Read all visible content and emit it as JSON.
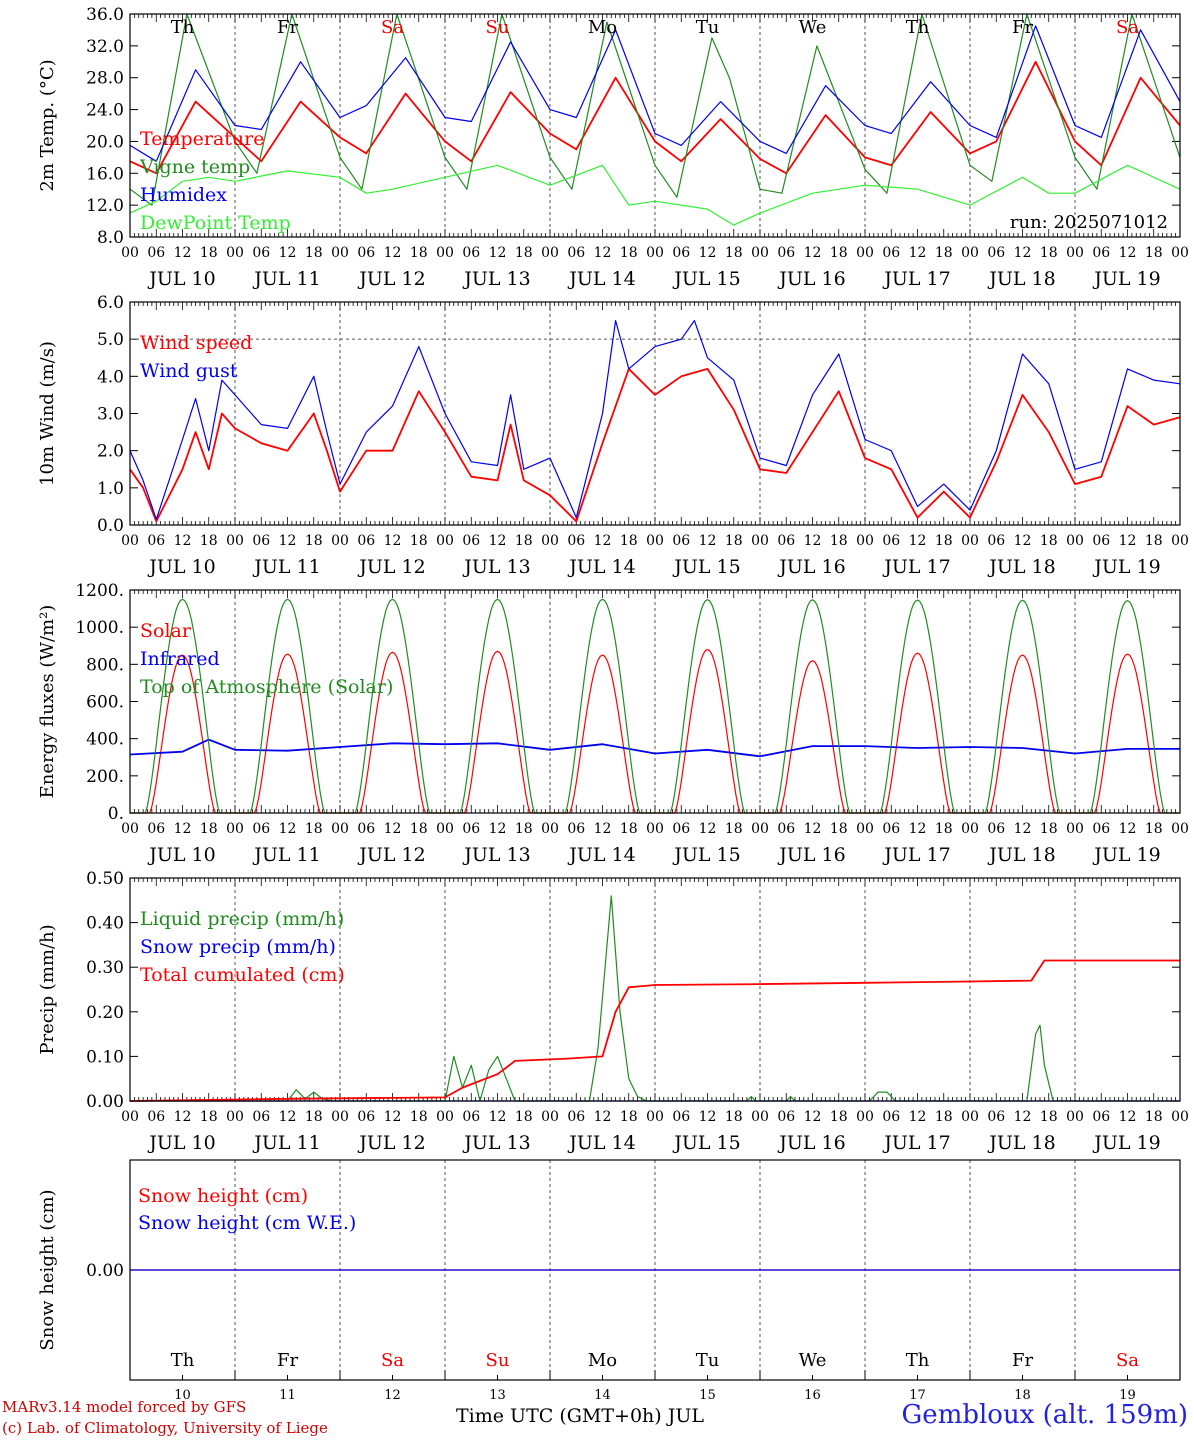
{
  "footer": {
    "credit_line1": "MARv3.14 model forced by GFS",
    "credit_line2": "(c) Lab. of Climatology, University of Liege",
    "x_title": "Time UTC (GMT+0h) JUL",
    "station": "Gembloux (alt. 159m)"
  },
  "colors": {
    "red": "#ff0000",
    "dark_green": "#228b22",
    "blue": "#0000ee",
    "light_green": "#33ee33",
    "weekend": "#ee0000",
    "weekday": "#000000"
  },
  "days": [
    "10",
    "11",
    "12",
    "13",
    "14",
    "15",
    "16",
    "17",
    "18",
    "19"
  ],
  "day_labels": [
    "JUL 10",
    "JUL 11",
    "JUL 12",
    "JUL 13",
    "JUL 14",
    "JUL 15",
    "JUL 16",
    "JUL 17",
    "JUL 18",
    "JUL 19"
  ],
  "weekdays": [
    {
      "label": "Th",
      "weekend": false
    },
    {
      "label": "Fr",
      "weekend": false
    },
    {
      "label": "Sa",
      "weekend": true
    },
    {
      "label": "Su",
      "weekend": true
    },
    {
      "label": "Mo",
      "weekend": false
    },
    {
      "label": "Tu",
      "weekend": false
    },
    {
      "label": "We",
      "weekend": false
    },
    {
      "label": "Th",
      "weekend": false
    },
    {
      "label": "Fr",
      "weekend": false
    },
    {
      "label": "Sa",
      "weekend": true
    }
  ],
  "hour_ticks": [
    "00",
    "06",
    "12",
    "18"
  ],
  "chart_data": [
    {
      "type": "line",
      "id": "temp",
      "ylabel": "2m Temp. (°C)",
      "ylim": [
        8,
        36
      ],
      "yticks": [
        "8.0",
        "12.0",
        "16.0",
        "20.0",
        "24.0",
        "28.0",
        "32.0",
        "36.0"
      ],
      "annotation": "run: 2025071012",
      "x_unit": "hours since Jul 10 00 UTC",
      "series": [
        {
          "name": "Temperature",
          "color": "#ff0000",
          "x": [
            0,
            6,
            15,
            24,
            30,
            39,
            48,
            54,
            63,
            72,
            78,
            87,
            96,
            102,
            111,
            120,
            126,
            135,
            144,
            150,
            159,
            168,
            174,
            183,
            192,
            198,
            207,
            216,
            222,
            231,
            240
          ],
          "y": [
            17.5,
            16.0,
            25.0,
            20.5,
            17.5,
            25.0,
            20.5,
            18.5,
            26.0,
            20.0,
            17.5,
            26.2,
            21.0,
            19.0,
            28.0,
            20.0,
            17.5,
            22.8,
            17.8,
            16.0,
            23.3,
            18.0,
            17.0,
            23.7,
            18.5,
            20.0,
            30.0,
            20.0,
            17.0,
            28.0,
            22.0
          ]
        },
        {
          "name": "Vigne temp",
          "color": "#228b22",
          "x": [
            0,
            5,
            13,
            24,
            29,
            37,
            48,
            53,
            61,
            72,
            77,
            85,
            96,
            101,
            109,
            120,
            125,
            133,
            137,
            144,
            149,
            157,
            168,
            173,
            181,
            192,
            197,
            205,
            216,
            221,
            229,
            240
          ],
          "y": [
            14.0,
            12.0,
            36.0,
            20.0,
            16.0,
            36.0,
            18.0,
            14.0,
            36.0,
            18.0,
            14.0,
            36.0,
            18.0,
            14.0,
            35.0,
            17.0,
            13.0,
            33.0,
            28.0,
            14.0,
            13.5,
            32.0,
            16.5,
            13.5,
            36.0,
            17.0,
            15.0,
            36.0,
            18.0,
            14.0,
            36.0,
            18.0
          ]
        },
        {
          "name": "Humidex",
          "color": "#0000ee",
          "x": [
            0,
            6,
            15,
            24,
            30,
            39,
            48,
            54,
            63,
            72,
            78,
            87,
            96,
            102,
            111,
            120,
            126,
            135,
            144,
            150,
            159,
            168,
            174,
            183,
            192,
            198,
            207,
            216,
            222,
            231,
            240
          ],
          "y": [
            19.5,
            17.5,
            29.0,
            22.0,
            21.5,
            30.0,
            23.0,
            24.5,
            30.5,
            23.0,
            22.5,
            32.5,
            24.0,
            23.0,
            34.0,
            21.0,
            19.5,
            25.0,
            20.0,
            18.5,
            27.0,
            22.0,
            21.0,
            27.5,
            22.0,
            20.5,
            34.5,
            22.0,
            20.5,
            34.0,
            25.0
          ]
        },
        {
          "name": "DewPoint Temp",
          "color": "#33ee33",
          "x": [
            0,
            6,
            12,
            18,
            24,
            36,
            48,
            54,
            60,
            72,
            84,
            96,
            108,
            114,
            120,
            132,
            138,
            144,
            156,
            168,
            180,
            192,
            204,
            210,
            216,
            228,
            240
          ],
          "y": [
            11.0,
            12.5,
            15.0,
            15.5,
            15.0,
            16.3,
            15.5,
            13.5,
            14.0,
            15.5,
            17.0,
            14.5,
            17.0,
            12.0,
            12.5,
            11.5,
            9.5,
            11.0,
            13.5,
            14.5,
            14.0,
            12.0,
            15.5,
            13.5,
            13.5,
            17.0,
            14.0
          ]
        }
      ]
    },
    {
      "type": "line",
      "id": "wind",
      "ylabel": "10m Wind (m/s)",
      "ylim": [
        0,
        6
      ],
      "yticks": [
        "0.0",
        "1.0",
        "2.0",
        "3.0",
        "4.0",
        "5.0",
        "6.0"
      ],
      "dashed_level": 5.0,
      "x_unit": "hours since Jul 10 00 UTC",
      "series": [
        {
          "name": "Wind speed",
          "color": "#ff0000",
          "x": [
            0,
            3,
            6,
            12,
            15,
            18,
            21,
            24,
            30,
            36,
            42,
            45,
            48,
            54,
            60,
            66,
            72,
            78,
            84,
            87,
            90,
            96,
            102,
            108,
            114,
            120,
            126,
            132,
            138,
            144,
            150,
            156,
            162,
            168,
            174,
            180,
            186,
            192,
            198,
            204,
            210,
            216,
            222,
            228,
            234,
            240
          ],
          "y": [
            1.5,
            1.0,
            0.1,
            1.5,
            2.5,
            1.5,
            3.0,
            2.6,
            2.2,
            2.0,
            3.0,
            2.0,
            0.9,
            2.0,
            2.0,
            3.6,
            2.5,
            1.3,
            1.2,
            2.7,
            1.2,
            0.8,
            0.1,
            2.2,
            4.2,
            3.5,
            4.0,
            4.2,
            3.1,
            1.5,
            1.4,
            2.5,
            3.6,
            1.8,
            1.5,
            0.2,
            0.9,
            0.2,
            1.7,
            3.5,
            2.5,
            1.1,
            1.3,
            3.2,
            2.7,
            2.9
          ]
        },
        {
          "name": "Wind gust",
          "color": "#0000ee",
          "x": [
            0,
            3,
            6,
            12,
            15,
            18,
            21,
            24,
            30,
            36,
            42,
            45,
            48,
            54,
            60,
            66,
            72,
            78,
            84,
            87,
            90,
            96,
            102,
            108,
            111,
            114,
            120,
            126,
            129,
            132,
            138,
            144,
            150,
            156,
            162,
            168,
            174,
            180,
            186,
            192,
            198,
            204,
            210,
            216,
            222,
            228,
            234,
            240
          ],
          "y": [
            2.0,
            1.2,
            0.15,
            2.3,
            3.4,
            2.0,
            3.9,
            3.5,
            2.7,
            2.6,
            4.0,
            2.5,
            1.1,
            2.5,
            3.2,
            4.8,
            3.0,
            1.7,
            1.6,
            3.5,
            1.5,
            1.8,
            0.2,
            3.0,
            5.5,
            4.2,
            4.8,
            5.0,
            5.5,
            4.5,
            3.9,
            1.8,
            1.6,
            3.5,
            4.6,
            2.3,
            2.0,
            0.5,
            1.1,
            0.4,
            2.0,
            4.6,
            3.8,
            1.5,
            1.7,
            4.2,
            3.9,
            3.8
          ]
        }
      ]
    },
    {
      "type": "line",
      "id": "energy",
      "ylabel": "Energy fluxes (W/m²)",
      "ylim": [
        0,
        1200
      ],
      "yticks": [
        "0.",
        "200.",
        "400.",
        "600.",
        "800.",
        "1000.",
        "1200."
      ],
      "x_unit": "hours since Jul 10 00 UTC",
      "series": [
        {
          "name": "Solar",
          "color": "#ff0000",
          "daily_peaks": [
            850,
            855,
            865,
            870,
            850,
            880,
            820,
            860,
            850,
            855
          ]
        },
        {
          "name": "Infrared",
          "color": "#0000ee",
          "x": [
            0,
            12,
            18,
            24,
            36,
            48,
            60,
            72,
            84,
            96,
            108,
            120,
            132,
            144,
            156,
            168,
            180,
            192,
            204,
            216,
            228,
            240
          ],
          "y": [
            315,
            330,
            395,
            340,
            335,
            355,
            375,
            370,
            375,
            340,
            370,
            320,
            340,
            305,
            360,
            360,
            350,
            355,
            350,
            320,
            345,
            345
          ]
        },
        {
          "name": "Top of Atmosphere (Solar)",
          "color": "#228b22",
          "daily_peaks": [
            1150,
            1150,
            1150,
            1150,
            1150,
            1148,
            1147,
            1146,
            1145,
            1143
          ]
        }
      ]
    },
    {
      "type": "line",
      "id": "precip",
      "ylabel": "Precip (mm/h)",
      "ylim": [
        0,
        0.5
      ],
      "yticks": [
        "0.00",
        "0.10",
        "0.20",
        "0.30",
        "0.40",
        "0.50"
      ],
      "x_unit": "hours since Jul 10 00 UTC",
      "series": [
        {
          "name": "Liquid precip (mm/h)",
          "color": "#228b22",
          "x": [
            0,
            36,
            38,
            40,
            42,
            44,
            46,
            72,
            74,
            76,
            78,
            80,
            82,
            84,
            86,
            88,
            90,
            105,
            107,
            110,
            112,
            114,
            116,
            118,
            141,
            142,
            143,
            150,
            151,
            152,
            169,
            171,
            173,
            175,
            205,
            207,
            208,
            209,
            211,
            240
          ],
          "y": [
            0,
            0,
            0.025,
            0.005,
            0.02,
            0.005,
            0,
            0,
            0.1,
            0.03,
            0.08,
            0.0,
            0.07,
            0.1,
            0.05,
            0.0,
            0,
            0,
            0.12,
            0.46,
            0.2,
            0.05,
            0.01,
            0,
            0,
            0.01,
            0,
            0,
            0.01,
            0,
            0,
            0.02,
            0.02,
            0,
            0,
            0.15,
            0.17,
            0.08,
            0,
            0
          ]
        },
        {
          "name": "Snow precip (mm/h)",
          "color": "#0000ee",
          "x": [
            0,
            240
          ],
          "y": [
            0,
            0
          ]
        },
        {
          "name": "Total cumulated (cm)",
          "color": "#ff0000",
          "x": [
            0,
            36,
            72,
            76,
            80,
            84,
            88,
            100,
            108,
            111,
            114,
            120,
            144,
            168,
            192,
            206,
            209,
            240
          ],
          "y": [
            0,
            0.005,
            0.008,
            0.03,
            0.045,
            0.06,
            0.09,
            0.095,
            0.1,
            0.2,
            0.255,
            0.26,
            0.262,
            0.265,
            0.268,
            0.27,
            0.315,
            0.315
          ]
        }
      ]
    },
    {
      "type": "line",
      "id": "snow",
      "ylabel": "Snow height (cm)",
      "yticks": [
        "0.00"
      ],
      "x_unit": "hours since Jul 10 00 UTC",
      "series": [
        {
          "name": "Snow height (cm)",
          "color": "#ff0000",
          "x": [
            0,
            240
          ],
          "y": [
            0,
            0
          ]
        },
        {
          "name": "Snow height (cm W.E.)",
          "color": "#0000ee",
          "x": [
            0,
            240
          ],
          "y": [
            0,
            0
          ]
        }
      ]
    }
  ]
}
